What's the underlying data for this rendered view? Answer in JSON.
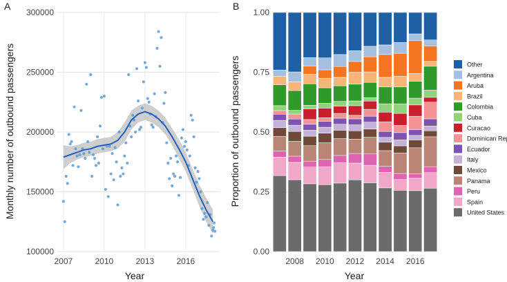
{
  "chart_data": [
    {
      "panel": "A",
      "type": "scatter",
      "xlabel": "Year",
      "ylabel": "Monthly number of outbound passengers",
      "xlim": [
        2006.5,
        2018.5
      ],
      "ylim": [
        100000,
        300000
      ],
      "x_ticks": [
        2007,
        2010,
        2013,
        2016
      ],
      "x_tick_labels": [
        "2007",
        "2010",
        "2013",
        "2016"
      ],
      "y_ticks": [
        100000,
        150000,
        200000,
        250000,
        300000
      ],
      "y_tick_labels": [
        "100000",
        "150000",
        "200000",
        "250000",
        "300000"
      ],
      "grid": true,
      "point_color": "#5b9bd5",
      "fit_color": "#1f5fbf",
      "band_color": "#bdbdbd",
      "points": [
        [
          2007.0,
          142000
        ],
        [
          2007.1,
          125000
        ],
        [
          2007.2,
          163000
        ],
        [
          2007.3,
          157000
        ],
        [
          2007.4,
          198000
        ],
        [
          2007.5,
          190000
        ],
        [
          2007.6,
          192000
        ],
        [
          2007.7,
          172000
        ],
        [
          2007.8,
          221000
        ],
        [
          2007.9,
          186000
        ],
        [
          2008.0,
          180000
        ],
        [
          2008.1,
          171000
        ],
        [
          2008.2,
          181000
        ],
        [
          2008.3,
          218000
        ],
        [
          2008.4,
          186000
        ],
        [
          2008.5,
          182000
        ],
        [
          2008.6,
          178000
        ],
        [
          2008.7,
          240000
        ],
        [
          2008.8,
          192000
        ],
        [
          2008.9,
          183000
        ],
        [
          2009.0,
          248000
        ],
        [
          2009.1,
          163000
        ],
        [
          2009.2,
          181000
        ],
        [
          2009.3,
          178000
        ],
        [
          2009.4,
          172000
        ],
        [
          2009.5,
          196000
        ],
        [
          2009.6,
          174000
        ],
        [
          2009.7,
          205000
        ],
        [
          2009.8,
          229000
        ],
        [
          2009.9,
          186000
        ],
        [
          2010.0,
          230000
        ],
        [
          2010.1,
          152000
        ],
        [
          2010.2,
          188000
        ],
        [
          2010.3,
          146000
        ],
        [
          2010.4,
          188000
        ],
        [
          2010.5,
          165000
        ],
        [
          2010.6,
          182000
        ],
        [
          2010.7,
          160000
        ],
        [
          2010.8,
          187000
        ],
        [
          2010.9,
          175000
        ],
        [
          2011.0,
          139000
        ],
        [
          2011.1,
          200000
        ],
        [
          2011.2,
          163000
        ],
        [
          2011.3,
          170000
        ],
        [
          2011.4,
          165000
        ],
        [
          2011.5,
          180000
        ],
        [
          2011.6,
          191000
        ],
        [
          2011.7,
          174000
        ],
        [
          2011.8,
          248000
        ],
        [
          2011.9,
          205000
        ],
        [
          2012.0,
          196000
        ],
        [
          2012.1,
          214000
        ],
        [
          2012.2,
          210000
        ],
        [
          2012.3,
          200000
        ],
        [
          2012.4,
          253000
        ],
        [
          2012.5,
          226000
        ],
        [
          2012.6,
          202000
        ],
        [
          2012.7,
          204000
        ],
        [
          2012.8,
          220000
        ],
        [
          2012.9,
          242000
        ],
        [
          2013.0,
          258000
        ],
        [
          2013.1,
          254000
        ],
        [
          2013.2,
          228000
        ],
        [
          2013.3,
          225000
        ],
        [
          2013.4,
          215000
        ],
        [
          2013.5,
          206000
        ],
        [
          2013.6,
          204000
        ],
        [
          2013.7,
          232000
        ],
        [
          2013.8,
          213000
        ],
        [
          2013.9,
          270000
        ],
        [
          2014.0,
          284000
        ],
        [
          2014.1,
          255000
        ],
        [
          2014.2,
          279000
        ],
        [
          2014.3,
          208000
        ],
        [
          2014.4,
          224000
        ],
        [
          2014.5,
          233000
        ],
        [
          2014.6,
          191000
        ],
        [
          2014.7,
          174000
        ],
        [
          2014.8,
          161000
        ],
        [
          2014.9,
          178000
        ],
        [
          2015.0,
          155000
        ],
        [
          2015.1,
          165000
        ],
        [
          2015.2,
          163000
        ],
        [
          2015.3,
          180000
        ],
        [
          2015.4,
          175000
        ],
        [
          2015.5,
          147000
        ],
        [
          2015.6,
          162000
        ],
        [
          2015.7,
          195000
        ],
        [
          2015.8,
          202000
        ],
        [
          2015.9,
          188000
        ],
        [
          2016.0,
          192000
        ],
        [
          2016.1,
          185000
        ],
        [
          2016.2,
          172000
        ],
        [
          2016.3,
          180000
        ],
        [
          2016.4,
          214000
        ],
        [
          2016.5,
          210000
        ],
        [
          2016.6,
          196000
        ],
        [
          2016.7,
          170000
        ],
        [
          2016.8,
          158000
        ],
        [
          2016.9,
          167000
        ],
        [
          2017.0,
          161000
        ],
        [
          2017.1,
          150000
        ],
        [
          2017.2,
          136000
        ],
        [
          2017.3,
          127000
        ],
        [
          2017.4,
          132000
        ],
        [
          2017.5,
          129000
        ],
        [
          2017.6,
          141000
        ],
        [
          2017.7,
          122000
        ],
        [
          2017.8,
          131000
        ],
        [
          2017.9,
          113000
        ],
        [
          2018.0,
          118000
        ],
        [
          2018.05,
          120000
        ],
        [
          2018.1,
          124000
        ],
        [
          2018.15,
          117000
        ]
      ],
      "fit": [
        [
          2007.0,
          179000,
          169000,
          189000
        ],
        [
          2007.5,
          181000,
          174000,
          188000
        ],
        [
          2008.0,
          183000,
          177000,
          189000
        ],
        [
          2008.5,
          185000,
          179000,
          191000
        ],
        [
          2009.0,
          186000,
          180000,
          192000
        ],
        [
          2009.5,
          188000,
          182000,
          194000
        ],
        [
          2010.0,
          189000,
          183000,
          195000
        ],
        [
          2010.5,
          190000,
          184000,
          196000
        ],
        [
          2011.0,
          193000,
          186000,
          200000
        ],
        [
          2011.5,
          200000,
          192000,
          208000
        ],
        [
          2012.0,
          210000,
          202000,
          218000
        ],
        [
          2012.5,
          215000,
          208000,
          222000
        ],
        [
          2013.0,
          217000,
          210000,
          224000
        ],
        [
          2013.5,
          215000,
          208000,
          222000
        ],
        [
          2014.0,
          211000,
          204000,
          218000
        ],
        [
          2014.5,
          205000,
          198000,
          212000
        ],
        [
          2015.0,
          196000,
          189000,
          203000
        ],
        [
          2015.5,
          186000,
          178000,
          194000
        ],
        [
          2016.0,
          175000,
          167000,
          183000
        ],
        [
          2016.5,
          161000,
          153000,
          169000
        ],
        [
          2017.0,
          147000,
          138000,
          156000
        ],
        [
          2017.5,
          135000,
          125000,
          145000
        ],
        [
          2018.0,
          125000,
          115000,
          135000
        ]
      ]
    },
    {
      "panel": "B",
      "type": "bar",
      "stacked": true,
      "xlabel": "Year",
      "ylabel": "Proportion of outbound passengers",
      "ylim": [
        0,
        1
      ],
      "y_ticks": [
        0,
        0.25,
        0.5,
        0.75,
        1
      ],
      "y_tick_labels": [
        "0.00",
        "0.25",
        "0.50",
        "0.75",
        "1.00"
      ],
      "categories": [
        "2007",
        "2008",
        "2009",
        "2010",
        "2011",
        "2012",
        "2013",
        "2014",
        "2015",
        "2016",
        "2017"
      ],
      "x_ticks": [
        "2008",
        "2010",
        "2012",
        "2014",
        "2016"
      ],
      "grid": true,
      "legend_position": "right",
      "series": [
        {
          "name": "United States",
          "color": "#6b6b6b",
          "values": [
            0.31,
            0.29,
            0.285,
            0.28,
            0.285,
            0.3,
            0.295,
            0.265,
            0.255,
            0.27,
            0.265
          ]
        },
        {
          "name": "Spain",
          "color": "#f2a6c8",
          "values": [
            0.075,
            0.07,
            0.07,
            0.075,
            0.085,
            0.07,
            0.075,
            0.065,
            0.045,
            0.055,
            0.065
          ]
        },
        {
          "name": "Peru",
          "color": "#de63b0",
          "values": [
            0.025,
            0.025,
            0.025,
            0.03,
            0.03,
            0.04,
            0.05,
            0.025,
            0.025,
            0.02,
            0.025
          ]
        },
        {
          "name": "Panama",
          "color": "#b98575",
          "values": [
            0.06,
            0.06,
            0.065,
            0.07,
            0.07,
            0.06,
            0.07,
            0.065,
            0.085,
            0.115,
            0.125
          ]
        },
        {
          "name": "Mexico",
          "color": "#6f4a3a",
          "values": [
            0.035,
            0.04,
            0.04,
            0.04,
            0.035,
            0.035,
            0.035,
            0.035,
            0.03,
            0.035,
            0.025
          ]
        },
        {
          "name": "Italy",
          "color": "#c4b3d8",
          "values": [
            0.03,
            0.025,
            0.025,
            0.025,
            0.025,
            0.025,
            0.03,
            0.02,
            0.025,
            0.02,
            0.02
          ]
        },
        {
          "name": "Ecuador",
          "color": "#7d52b0",
          "values": [
            0.025,
            0.025,
            0.025,
            0.025,
            0.025,
            0.025,
            0.025,
            0.025,
            0.03,
            0.025,
            0.03
          ]
        },
        {
          "name": "Dominican Rep",
          "color": "#f49393",
          "values": [
            0.015,
            0.02,
            0.02,
            0.015,
            0.02,
            0.015,
            0.03,
            0.04,
            0.03,
            0.06,
            0.07
          ]
        },
        {
          "name": "Curacao",
          "color": "#c91f2c",
          "values": [
            0.0,
            0.0,
            0.045,
            0.04,
            0.03,
            0.04,
            0.035,
            0.04,
            0.05,
            0.05,
            0.02
          ]
        },
        {
          "name": "Cuba",
          "color": "#8fd47a",
          "values": [
            0.02,
            0.015,
            0.015,
            0.02,
            0.02,
            0.02,
            0.015,
            0.035,
            0.04,
            0.03,
            0.03
          ]
        },
        {
          "name": "Colombia",
          "color": "#2f9a2a",
          "values": [
            0.085,
            0.08,
            0.09,
            0.065,
            0.065,
            0.07,
            0.065,
            0.07,
            0.07,
            0.075,
            0.1
          ]
        },
        {
          "name": "Brazil",
          "color": "#f7b57a",
          "values": [
            0.035,
            0.035,
            0.04,
            0.04,
            0.035,
            0.05,
            0.045,
            0.04,
            0.045,
            0.035,
            0.02
          ]
        },
        {
          "name": "Aruba",
          "color": "#f37421",
          "values": [
            0.0,
            0.0,
            0.035,
            0.035,
            0.045,
            0.045,
            0.065,
            0.095,
            0.095,
            0.145,
            0.065
          ]
        },
        {
          "name": "Argentina",
          "color": "#a5bfe0",
          "values": [
            0.025,
            0.04,
            0.035,
            0.05,
            0.05,
            0.045,
            0.045,
            0.04,
            0.045,
            0.03,
            0.025
          ]
        },
        {
          "name": "Other",
          "color": "#1f5fa6",
          "values": [
            0.235,
            0.24,
            0.19,
            0.19,
            0.175,
            0.16,
            0.145,
            0.135,
            0.125,
            0.095,
            0.115
          ]
        }
      ],
      "legend_order": [
        "Other",
        "Argentina",
        "Aruba",
        "Brazil",
        "Colombia",
        "Cuba",
        "Curacao",
        "Dominican Rep",
        "Ecuador",
        "Italy",
        "Mexico",
        "Panama",
        "Peru",
        "Spain",
        "United States"
      ]
    }
  ]
}
